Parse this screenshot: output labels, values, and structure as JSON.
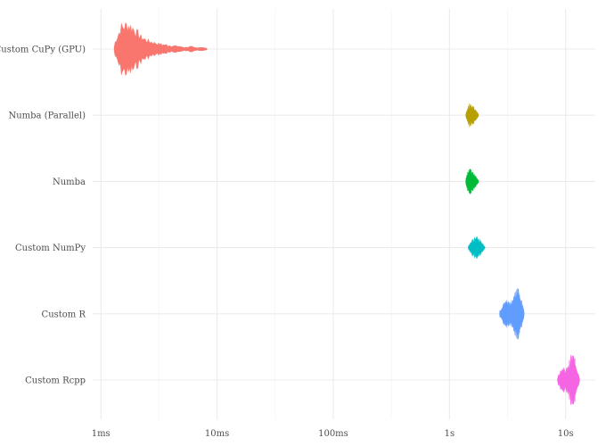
{
  "chart_data": {
    "type": "violin",
    "x_scale": "log10",
    "x_unit": "seconds",
    "xlim": [
      0.00085,
      18
    ],
    "x_ticks": [
      {
        "value": 0.001,
        "label": "1ms"
      },
      {
        "value": 0.01,
        "label": "10ms"
      },
      {
        "value": 0.1,
        "label": "100ms"
      },
      {
        "value": 1,
        "label": "1s"
      },
      {
        "value": 10,
        "label": "10s"
      }
    ],
    "x_minor_ticks": [
      0.00316,
      0.0316,
      0.316,
      3.16
    ],
    "grid": true,
    "legend": "none",
    "series": [
      {
        "name": "Custom CuPy (GPU)",
        "color": "#F8766D",
        "range": [
          0.0013,
          0.0082
        ],
        "profile": [
          [
            0.0013,
            0.2
          ],
          [
            0.0015,
            0.9
          ],
          [
            0.0017,
            1.0
          ],
          [
            0.0019,
            0.85
          ],
          [
            0.0022,
            0.5
          ],
          [
            0.0025,
            0.35
          ],
          [
            0.0028,
            0.28
          ],
          [
            0.0031,
            0.22
          ],
          [
            0.0035,
            0.18
          ],
          [
            0.004,
            0.14
          ],
          [
            0.0046,
            0.12
          ],
          [
            0.0052,
            0.07
          ],
          [
            0.006,
            0.1
          ],
          [
            0.0065,
            0.05
          ],
          [
            0.0072,
            0.08
          ],
          [
            0.0082,
            0.03
          ]
        ]
      },
      {
        "name": "Numba (Parallel)",
        "color": "#B79F00",
        "range": [
          1.38,
          1.78
        ],
        "profile": [
          [
            1.38,
            0.05
          ],
          [
            1.45,
            0.3
          ],
          [
            1.5,
            0.45
          ],
          [
            1.55,
            0.35
          ],
          [
            1.62,
            0.3
          ],
          [
            1.7,
            0.15
          ],
          [
            1.78,
            0.04
          ]
        ]
      },
      {
        "name": "Numba",
        "color": "#00BA38",
        "range": [
          1.38,
          1.78
        ],
        "profile": [
          [
            1.38,
            0.08
          ],
          [
            1.44,
            0.35
          ],
          [
            1.5,
            0.45
          ],
          [
            1.56,
            0.38
          ],
          [
            1.62,
            0.3
          ],
          [
            1.7,
            0.15
          ],
          [
            1.78,
            0.04
          ]
        ]
      },
      {
        "name": "Custom NumPy",
        "color": "#00BFC4",
        "range": [
          1.45,
          2.02
        ],
        "profile": [
          [
            1.45,
            0.05
          ],
          [
            1.55,
            0.25
          ],
          [
            1.65,
            0.35
          ],
          [
            1.72,
            0.45
          ],
          [
            1.8,
            0.3
          ],
          [
            1.9,
            0.18
          ],
          [
            2.02,
            0.05
          ]
        ]
      },
      {
        "name": "Custom R",
        "color": "#619CFF",
        "range": [
          2.7,
          4.4
        ],
        "profile": [
          [
            2.7,
            0.1
          ],
          [
            2.9,
            0.35
          ],
          [
            3.1,
            0.5
          ],
          [
            3.3,
            0.42
          ],
          [
            3.5,
            0.55
          ],
          [
            3.7,
            0.75
          ],
          [
            3.9,
            0.95
          ],
          [
            4.1,
            0.6
          ],
          [
            4.4,
            0.1
          ]
        ]
      },
      {
        "name": "Custom Rcpp",
        "color": "#F564E3",
        "range": [
          8.5,
          13.2
        ],
        "profile": [
          [
            8.5,
            0.1
          ],
          [
            8.9,
            0.3
          ],
          [
            9.4,
            0.45
          ],
          [
            10,
            0.35
          ],
          [
            10.6,
            0.55
          ],
          [
            11.2,
            0.9
          ],
          [
            11.8,
            0.85
          ],
          [
            12.5,
            0.45
          ],
          [
            13.2,
            0.08
          ]
        ]
      }
    ]
  }
}
